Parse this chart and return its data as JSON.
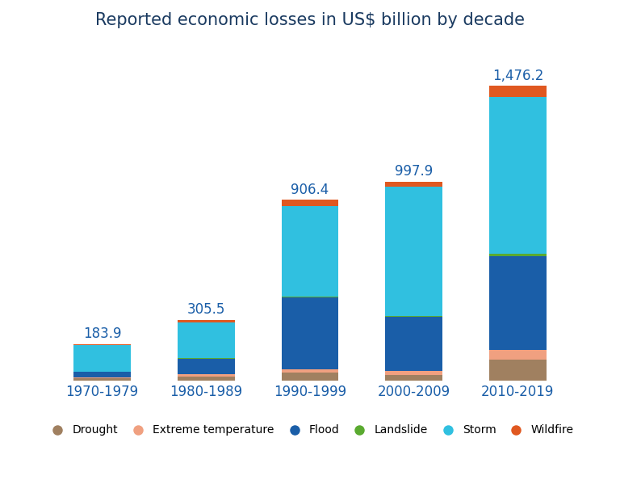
{
  "title": "Reported economic losses in US$ billion by decade",
  "categories": [
    "1970-1979",
    "1980-1989",
    "1990-1999",
    "2000-2009",
    "2010-2019"
  ],
  "totals": [
    183.9,
    305.5,
    906.4,
    997.9,
    1476.2
  ],
  "segments": {
    "Drought": [
      14.0,
      22.0,
      42.0,
      30.0,
      106.0
    ],
    "Extreme temperature": [
      3.0,
      12.0,
      18.0,
      22.0,
      48.0
    ],
    "Flood": [
      28.0,
      78.0,
      358.0,
      270.0,
      472.0
    ],
    "Landslide": [
      1.5,
      4.0,
      6.0,
      5.0,
      10.0
    ],
    "Storm": [
      135.0,
      178.0,
      452.0,
      645.0,
      786.0
    ],
    "Wildfire": [
      2.4,
      11.5,
      30.4,
      25.9,
      54.2
    ]
  },
  "colors": {
    "Drought": "#a08060",
    "Extreme temperature": "#f0a080",
    "Flood": "#1a5ea8",
    "Landslide": "#5aaa30",
    "Storm": "#30c0e0",
    "Wildfire": "#e05820"
  },
  "total_label_color": "#1a5ea8",
  "title_color": "#1a3a60",
  "xlabel_color": "#1a5ea8",
  "background_color": "#ffffff",
  "bar_width": 0.55,
  "figsize": [
    7.68,
    6.15
  ],
  "dpi": 100
}
